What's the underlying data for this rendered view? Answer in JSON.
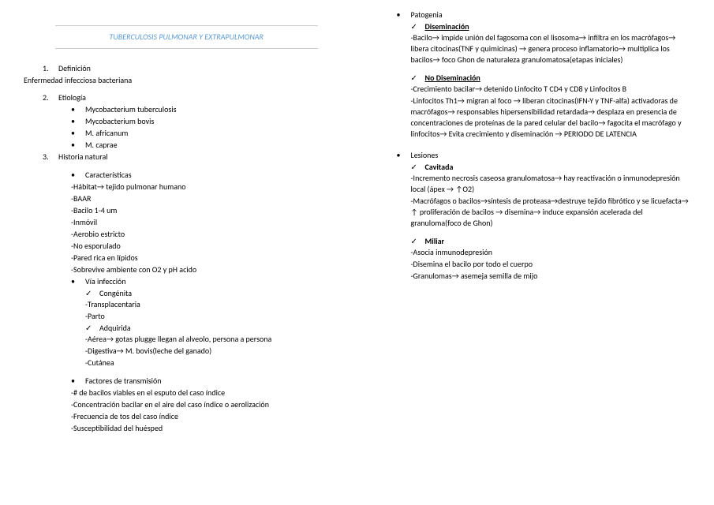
{
  "title": "TUBERCULOSIS PULMONAR Y EXTRAPULMONAR",
  "left": {
    "s1_num": "1.",
    "s1_label": "Definición",
    "s1_text": "Enfermedad infecciosa bacteriana",
    "s2_num": "2.",
    "s2_label": "Etiología",
    "s2_items": [
      "Mycobacterium tuberculosis",
      "Mycobacterium bovis",
      "M. africanum",
      "M. caprae"
    ],
    "s3_num": "3.",
    "s3_label": "Historia natural",
    "s3_char_label": "Características",
    "s3_char_lines": [
      "-Hábitat→ tejido pulmonar humano",
      "-BAAR",
      "-Bacilo 1-4 um",
      "-Inmóvil",
      "-Aerobio estricto",
      "-No esporulado",
      "-Pared rica en lípidos",
      "-Sobrevive ambiente con O2 y pH acido"
    ],
    "s3_via_label": "Vía infección",
    "s3_via_congenita": "Congénita",
    "s3_via_congenita_lines": [
      "-Transplacentaria",
      "-Parto"
    ],
    "s3_via_adquirida": "Adquirida",
    "s3_via_adquirida_lines": [
      "-Aérea→ gotas plugge llegan al alveolo, persona a persona",
      "-Digestiva→ M. bovis(leche del ganado)",
      "-Cutánea"
    ],
    "s3_factores_label": "Factores de transmisión",
    "s3_factores_lines": [
      "-# de bacilos viables en el esputo del caso índice",
      "-Concentración bacilar en el aire del caso índice o aerolización",
      "-Frecuencia de tos del caso índice",
      "-Susceptibilidad del huésped"
    ]
  },
  "right": {
    "patogenia_label": "Patogenia",
    "diseminacion_label": "Diseminación",
    "diseminacion_text": "-Bacilo→ impide unión del fagosoma con el lisosoma→ infiltra en los macrófagos→ libera citocinas(TNF y quimicinas) → genera proceso inflamatorio→ multiplica los bacilos→ foco Ghon de naturaleza granulomatosa(etapas iniciales)",
    "nodiseminacion_label": "No Diseminación",
    "nodiseminacion_text1": "-Crecimiento bacilar→ detenido  Linfocito T CD4 y CD8 y Linfocitos B",
    "nodiseminacion_text2": "-Linfocitos Th1→ migran al foco → liberan citocinas(IFN-Y y TNF-alfa) activadoras de macrófagos→ responsables hipersensibilidad retardada→ desplaza en presencia de concentraciones de proteínas de la pared celular del bacilo→ fagocita el macrófago y linfocitos→ Evita crecimiento y diseminación → PERIODO DE LATENCIA",
    "lesiones_label": "Lesiones",
    "cavitada_label": "Cavitada",
    "cavitada_text1": "-Incremento necrosis caseosa granulomatosa→ hay reactivación o inmunodepresión local (ápex → ↑O2)",
    "cavitada_text2": "-Macrófagos o bacilos→síntesis de proteasa→destruye tejido fibrótico y se licuefacta→ ↑ proliferación de bacilos → disemina→ induce expansión acelerada del granuloma(foco de Ghon)",
    "miliar_label": "Miliar",
    "miliar_lines": [
      "-Asocia inmunodepresión",
      "-Disemina el bacilo por todo el cuerpo",
      "-Granulomas→ asemeja semilla de mijo"
    ]
  }
}
